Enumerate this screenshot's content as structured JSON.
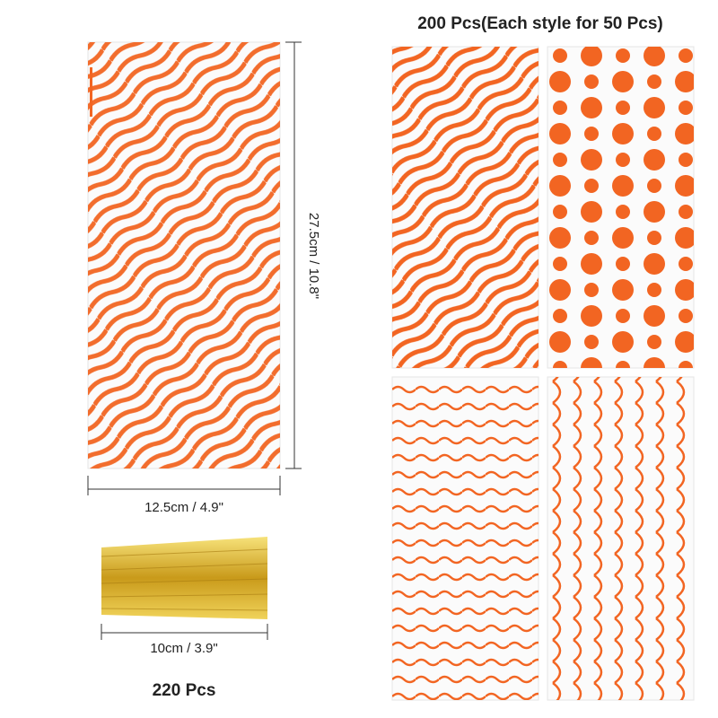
{
  "title": "200 Pcs(Each style for 50 Pcs)",
  "bag_dimensions": {
    "height": "27.5cm / 10.8\"",
    "width": "12.5cm / 4.9\""
  },
  "ties": {
    "length": "10cm / 3.9\"",
    "count": "220 Pcs"
  }
}
